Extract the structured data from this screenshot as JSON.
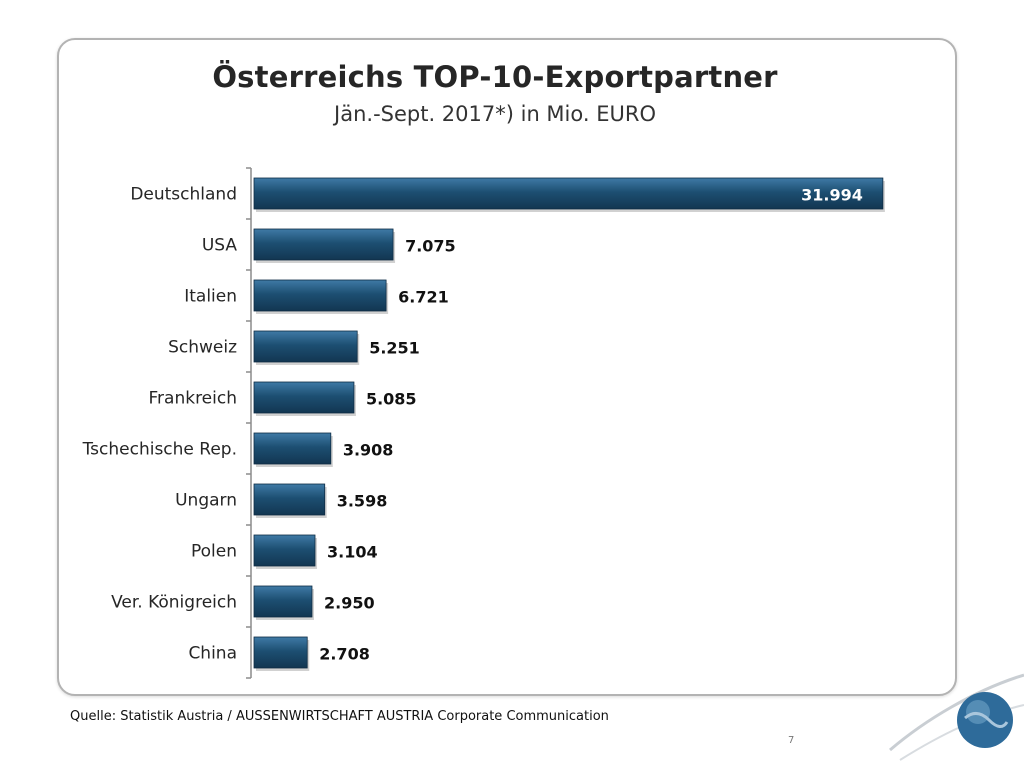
{
  "chart_data": {
    "type": "bar",
    "orientation": "horizontal",
    "title": "Österreichs TOP-10-Exportpartner",
    "subtitle": "Jän.-Sept. 2017*) in Mio. EURO",
    "categories": [
      "Deutschland",
      "USA",
      "Italien",
      "Schweiz",
      "Frankreich",
      "Tschechische Rep.",
      "Ungarn",
      "Polen",
      "Ver. Königreich",
      "China"
    ],
    "values": [
      31994,
      7075,
      6721,
      5251,
      5085,
      3908,
      3598,
      3104,
      2950,
      2708
    ],
    "value_labels": [
      "31.994",
      "7.075",
      "6.721",
      "5.251",
      "5.085",
      "3.908",
      "3.598",
      "3.104",
      "2.950",
      "2.708"
    ],
    "xlim": [
      0,
      32000
    ],
    "bar_color": "#1d4f72",
    "grid": false
  },
  "footer": {
    "source": "Quelle: Statistik Austria / AUSSENWIRTSCHAFT AUSTRIA Corporate Communication",
    "page_number": "7"
  }
}
